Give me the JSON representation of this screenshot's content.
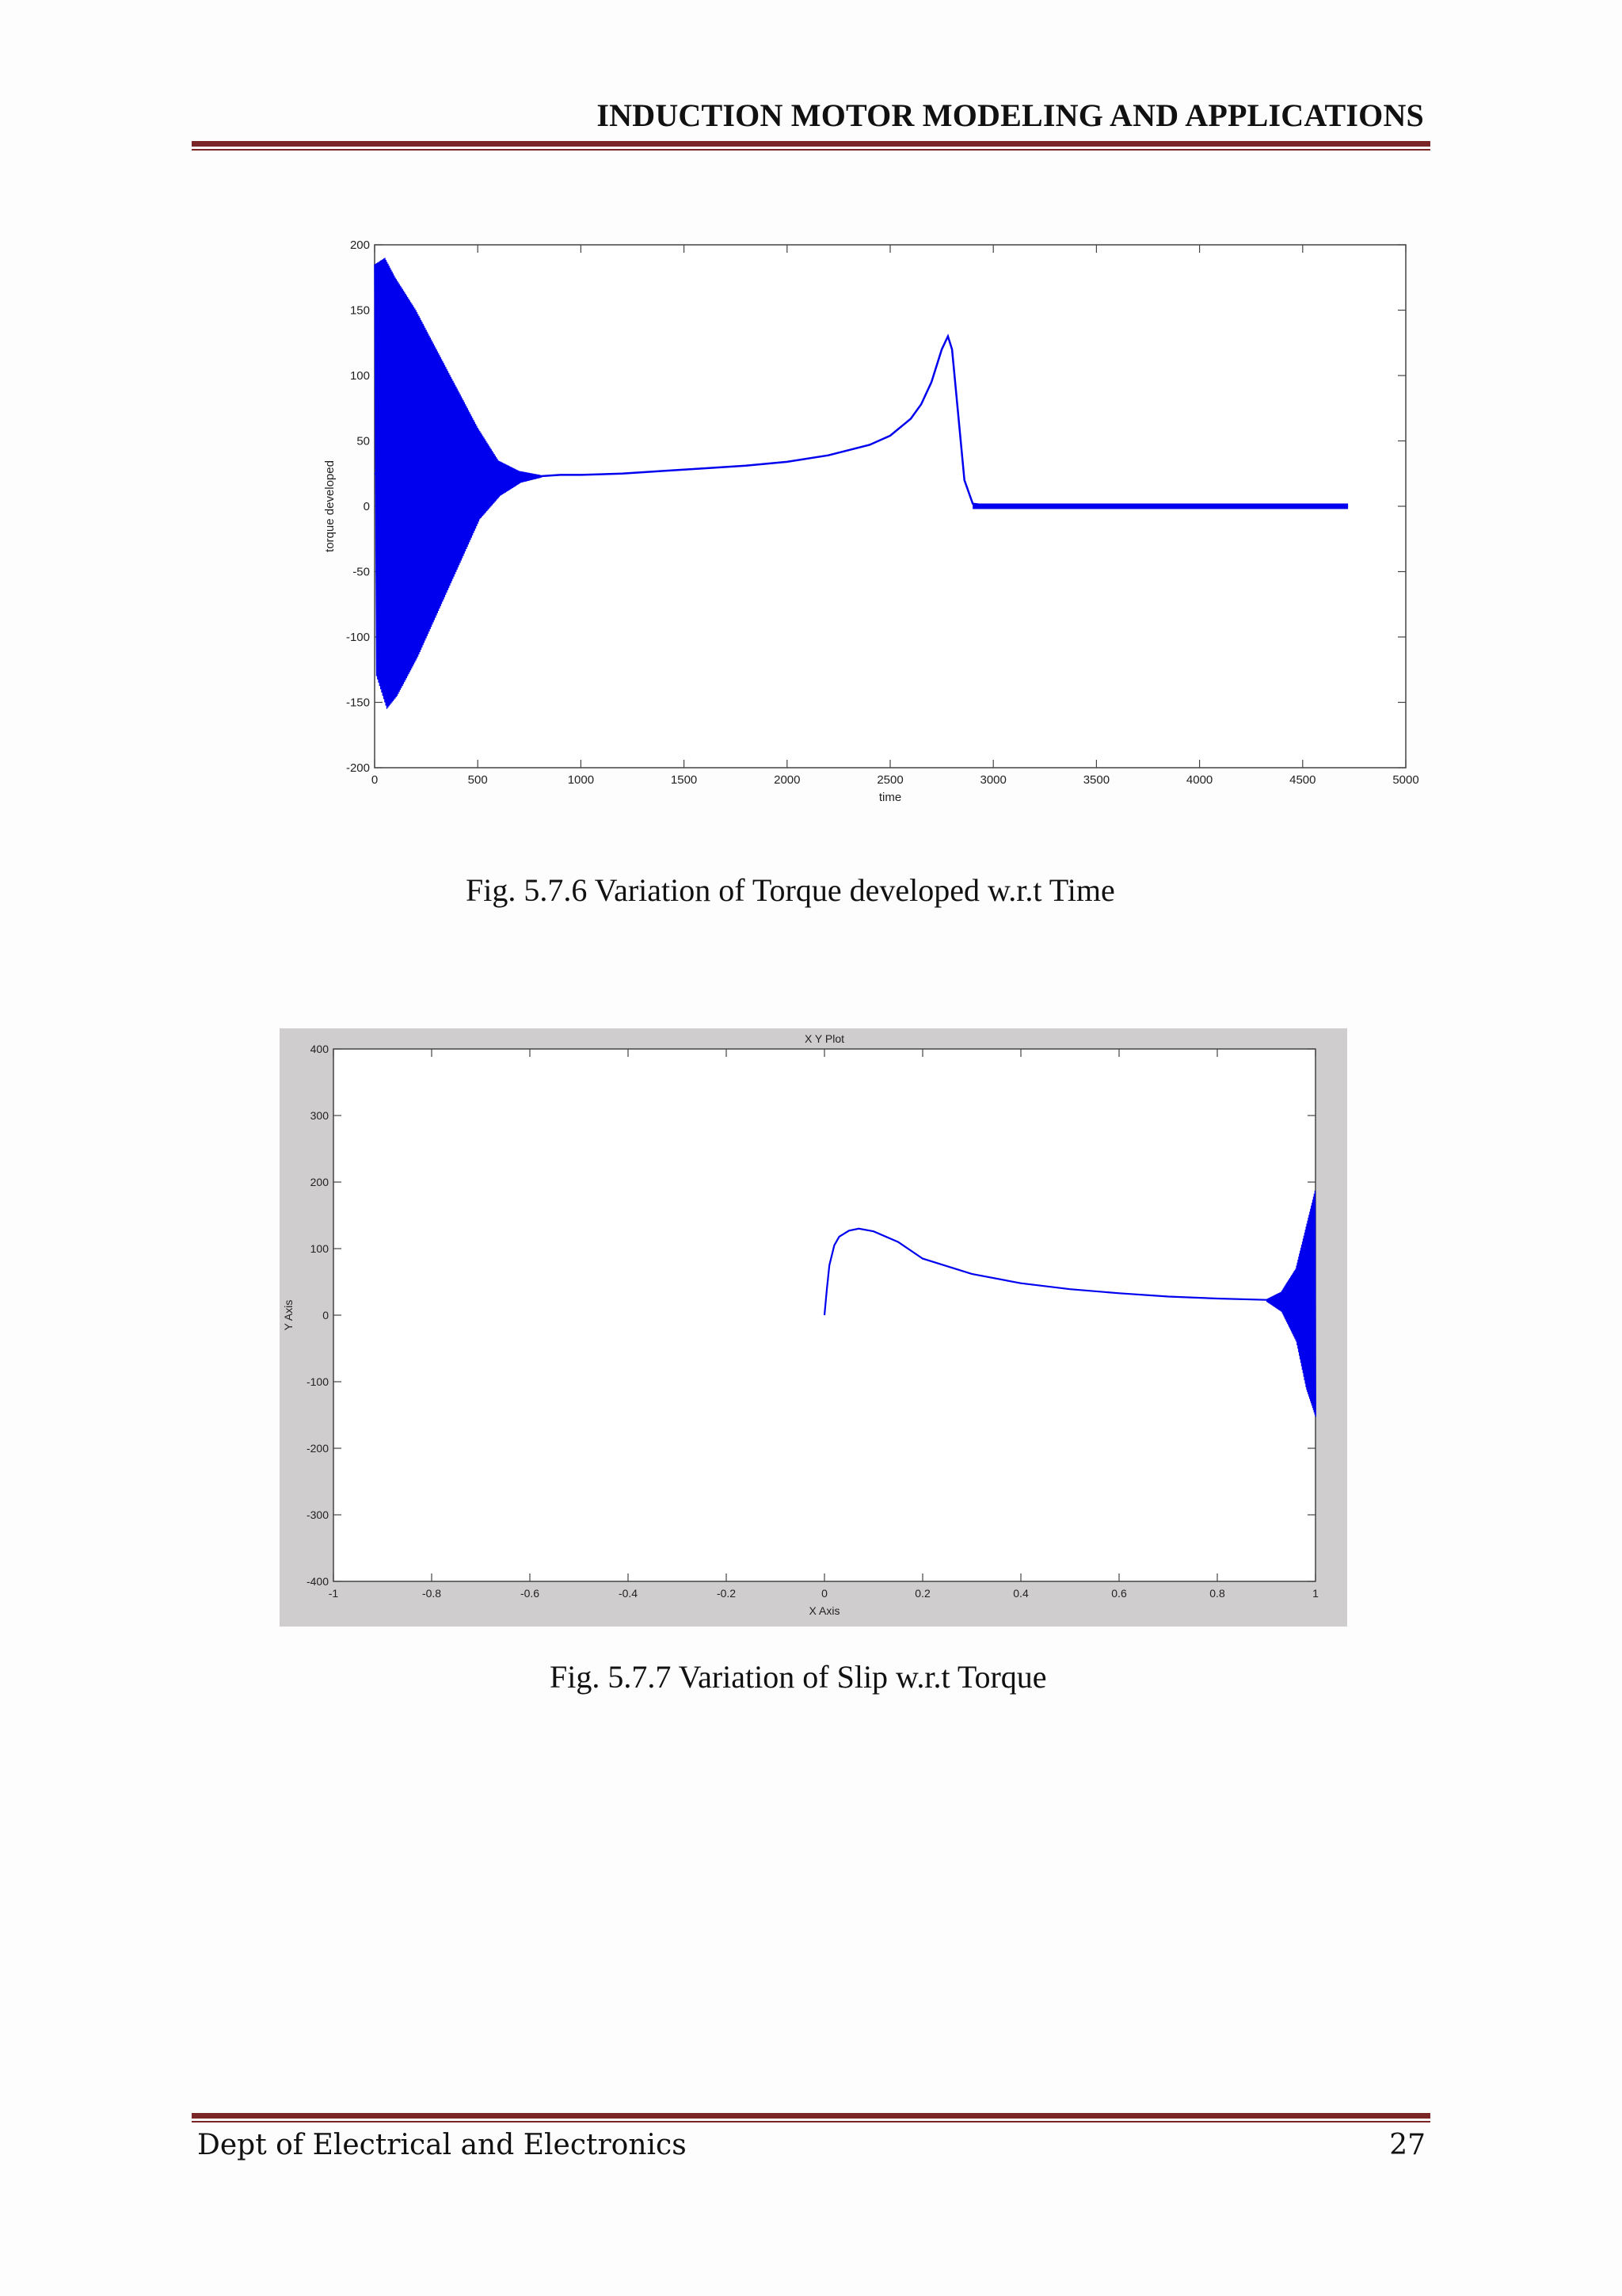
{
  "header": {
    "title": "INDUCTION MOTOR MODELING AND APPLICATIONS"
  },
  "colors": {
    "rule": "#7b2626",
    "trace": "#0000ee",
    "figure_frame": "#cfcdce"
  },
  "figures": [
    {
      "caption": "Fig. 5.7.6 Variation of Torque developed  w.r.t Time"
    },
    {
      "caption": "Fig. 5.7.7 Variation of Slip w.r.t Torque"
    }
  ],
  "footer": {
    "department": "Dept of Electrical and Electronics",
    "page_number": "27"
  },
  "chart_data": [
    {
      "type": "line",
      "title": "",
      "xlabel": "time",
      "ylabel": "torque developed",
      "xlim": [
        0,
        5000
      ],
      "ylim": [
        -200,
        200
      ],
      "x_ticks": [
        0,
        500,
        1000,
        1500,
        2000,
        2500,
        3000,
        3500,
        4000,
        4500,
        5000
      ],
      "y_ticks": [
        200,
        150,
        100,
        50,
        0,
        -50,
        -100,
        -150,
        -200
      ],
      "grid": false,
      "series": [
        {
          "x": [
            0,
            100,
            200,
            300,
            400,
            500,
            600,
            700,
            800,
            900,
            1000,
            1200,
            1400,
            1600,
            1800,
            2000,
            2200,
            2400,
            2500,
            2600,
            2650,
            2700,
            2750,
            2780,
            2800,
            2830,
            2860,
            2900,
            3000,
            3500,
            4000,
            4500,
            4720
          ],
          "y": [
            25,
            24,
            24,
            23,
            23,
            23,
            23,
            23,
            23,
            24,
            24,
            25,
            27,
            29,
            31,
            34,
            39,
            47,
            54,
            67,
            78,
            95,
            120,
            130,
            120,
            70,
            20,
            2,
            0,
            0,
            0,
            0,
            0
          ]
        },
        {
          "name": "",
          "x": [
            0,
            50,
            100,
            200,
            300,
            400,
            500,
            600,
            700,
            800
          ],
          "upper": [
            185,
            190,
            175,
            150,
            120,
            90,
            60,
            35,
            27,
            24
          ],
          "lower": [
            -130,
            -155,
            -145,
            -115,
            -80,
            -45,
            -10,
            8,
            18,
            22
          ]
        }
      ]
    },
    {
      "type": "line",
      "title": "X Y Plot",
      "xlabel": "X Axis",
      "ylabel": "Y Axis",
      "xlim": [
        -1,
        1
      ],
      "ylim": [
        -400,
        400
      ],
      "x_ticks": [
        -1,
        -0.8,
        -0.6,
        -0.4,
        -0.2,
        0,
        0.2,
        0.4,
        0.6,
        0.8,
        1
      ],
      "y_ticks": [
        400,
        300,
        200,
        100,
        0,
        -100,
        -200,
        -300,
        -400
      ],
      "grid": false,
      "series": [
        {
          "x": [
            0,
            0.005,
            0.01,
            0.02,
            0.03,
            0.05,
            0.07,
            0.1,
            0.15,
            0.2,
            0.3,
            0.4,
            0.5,
            0.6,
            0.7,
            0.8,
            0.9,
            0.95
          ],
          "y": [
            0,
            40,
            75,
            105,
            118,
            127,
            130,
            126,
            110,
            85,
            62,
            48,
            39,
            33,
            28,
            25,
            23,
            22
          ],
          "upper_envelope_x": [
            0.9,
            0.93,
            0.96,
            0.98,
            1.0
          ],
          "upper_envelope_y": [
            24,
            35,
            70,
            130,
            190
          ],
          "lower_envelope_y": [
            20,
            5,
            -40,
            -110,
            -155
          ]
        }
      ]
    }
  ]
}
